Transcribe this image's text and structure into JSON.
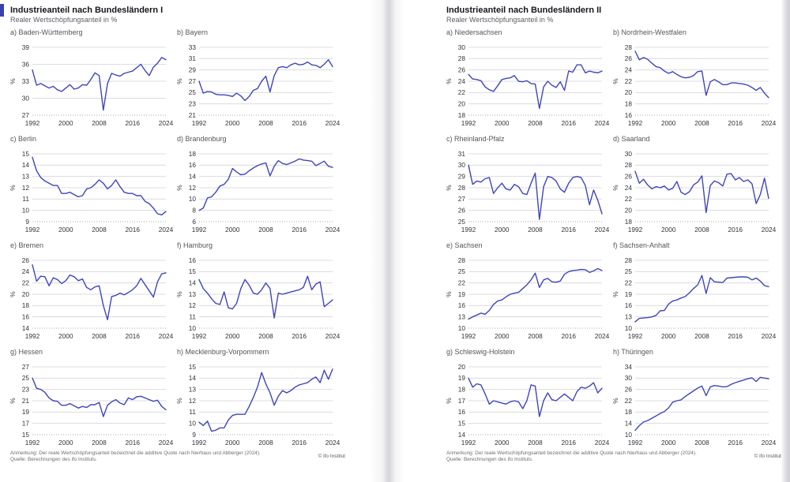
{
  "pages": [
    {
      "title": "Industrieanteil nach Bundesländern I",
      "subtitle": "Realer Wertschöpfungsanteil in %",
      "note_line1": "Anmerkung: Der reale Wertschöpfungsanteil bezeichnet die additive Quote nach Nierhaus und Abberger (2024).",
      "note_line2": "Quelle: Berechnungen des ifo Instituts.",
      "copyright": "© ifo Institut"
    },
    {
      "title": "Industrieanteil nach Bundesländern II",
      "subtitle": "Realer Wertschöpfungsanteil in %",
      "note_line1": "Anmerkung: Der reale Wertschöpfungsanteil bezeichnet die additive Quote nach Nierhaus und Abberger (2024).",
      "note_line2": "Quelle: Berechnungen des ifo Instituts.",
      "copyright": "© ifo Institut"
    }
  ],
  "chart_defaults": {
    "x_start": 1992,
    "x_end": 2024,
    "x_ticks": [
      1992,
      2000,
      2008,
      2016,
      2024
    ],
    "ylabel": "%",
    "line_color": "#3f46b8",
    "grid_color": "#dcdce1",
    "baseline_color": "#a9a9b0",
    "grid": true,
    "legend": "none"
  },
  "chart_data": [
    {
      "page": 1,
      "type": "line",
      "label": "a) Baden-Württemberg",
      "region": "Baden-Württemberg",
      "ylabel": "%",
      "ylim": [
        27,
        39
      ],
      "yticks": [
        27,
        30,
        33,
        36,
        39
      ],
      "values": [
        35.0,
        32.3,
        32.6,
        32.2,
        31.8,
        32.1,
        31.5,
        31.2,
        31.8,
        32.4,
        31.6,
        31.8,
        32.4,
        32.3,
        33.3,
        34.5,
        34.0,
        27.9,
        32.6,
        34.4,
        34.1,
        33.9,
        34.4,
        34.6,
        34.8,
        35.4,
        36.0,
        34.9,
        34.0,
        35.5,
        36.2,
        37.2,
        36.8
      ]
    },
    {
      "page": 1,
      "type": "line",
      "label": "b) Bayern",
      "region": "Bayern",
      "ylabel": "%",
      "ylim": [
        21,
        33
      ],
      "yticks": [
        21,
        23,
        25,
        27,
        29,
        31,
        33
      ],
      "values": [
        27.0,
        24.9,
        25.2,
        25.1,
        24.7,
        24.6,
        24.6,
        24.5,
        24.3,
        24.9,
        24.4,
        23.6,
        24.3,
        25.4,
        25.7,
        27.0,
        27.9,
        25.1,
        28.0,
        29.4,
        29.6,
        29.4,
        29.9,
        30.2,
        29.9,
        30.0,
        30.4,
        29.9,
        29.8,
        29.4,
        30.0,
        30.8,
        29.6
      ]
    },
    {
      "page": 1,
      "type": "line",
      "label": "c) Berlin",
      "region": "Berlin",
      "ylabel": "%",
      "ylim": [
        9,
        15
      ],
      "yticks": [
        9,
        10,
        11,
        12,
        13,
        14,
        15
      ],
      "values": [
        14.7,
        13.5,
        12.9,
        12.6,
        12.4,
        12.2,
        12.2,
        11.5,
        11.5,
        11.6,
        11.4,
        11.2,
        11.3,
        11.9,
        12.0,
        12.3,
        12.7,
        12.4,
        11.9,
        12.2,
        12.7,
        12.1,
        11.6,
        11.5,
        11.5,
        11.3,
        11.3,
        10.8,
        10.6,
        10.2,
        9.7,
        9.6,
        9.9
      ]
    },
    {
      "page": 1,
      "type": "line",
      "label": "d) Brandenburg",
      "region": "Brandenburg",
      "ylabel": "%",
      "ylim": [
        6,
        18
      ],
      "yticks": [
        6,
        8,
        10,
        12,
        14,
        16,
        18
      ],
      "values": [
        8.0,
        8.4,
        10.2,
        10.4,
        11.2,
        12.3,
        12.6,
        13.5,
        15.4,
        14.8,
        14.3,
        14.4,
        15.0,
        15.5,
        15.9,
        16.2,
        16.4,
        14.1,
        15.8,
        16.8,
        16.3,
        16.1,
        16.4,
        16.7,
        17.1,
        16.9,
        16.8,
        16.7,
        15.9,
        16.3,
        16.7,
        15.8,
        15.6
      ]
    },
    {
      "page": 1,
      "type": "line",
      "label": "e) Bremen",
      "region": "Bremen",
      "ylabel": "%",
      "ylim": [
        14,
        26
      ],
      "yticks": [
        14,
        16,
        18,
        20,
        22,
        24,
        26
      ],
      "values": [
        25.2,
        22.3,
        23.2,
        23.1,
        21.5,
        22.9,
        22.6,
        21.9,
        22.4,
        23.4,
        23.1,
        22.4,
        22.7,
        21.2,
        20.8,
        21.3,
        21.5,
        18.0,
        15.5,
        19.6,
        19.8,
        20.2,
        19.9,
        20.3,
        20.8,
        21.5,
        22.8,
        21.7,
        20.6,
        19.5,
        22.2,
        23.6,
        23.8
      ]
    },
    {
      "page": 1,
      "type": "line",
      "label": "f) Hamburg",
      "region": "Hamburg",
      "ylabel": "%",
      "ylim": [
        10,
        16
      ],
      "yticks": [
        10,
        11,
        12,
        13,
        14,
        15,
        16
      ],
      "values": [
        14.3,
        13.5,
        13.1,
        12.6,
        12.2,
        12.1,
        13.2,
        11.8,
        11.7,
        12.2,
        13.5,
        14.3,
        13.8,
        13.1,
        13.0,
        13.4,
        14.0,
        13.5,
        10.9,
        13.1,
        13.0,
        13.1,
        13.2,
        13.3,
        13.4,
        13.6,
        14.6,
        13.4,
        13.9,
        14.1,
        11.9,
        12.2,
        12.5
      ]
    },
    {
      "page": 1,
      "type": "line",
      "label": "g) Hessen",
      "region": "Hessen",
      "ylabel": "%",
      "ylim": [
        15,
        27
      ],
      "yticks": [
        15,
        17,
        19,
        21,
        23,
        25,
        27
      ],
      "values": [
        25.0,
        23.2,
        23.0,
        22.5,
        21.5,
        21.0,
        20.9,
        20.2,
        20.2,
        20.5,
        20.1,
        19.7,
        20.0,
        19.8,
        20.3,
        20.3,
        20.7,
        18.2,
        20.2,
        20.8,
        21.2,
        20.6,
        20.3,
        21.5,
        21.2,
        21.7,
        21.8,
        21.5,
        21.2,
        20.9,
        21.1,
        20.0,
        19.4
      ]
    },
    {
      "page": 1,
      "type": "line",
      "label": "h) Mecklenburg-Vorpommern",
      "region": "Mecklenburg-Vorpommern",
      "ylabel": "%",
      "ylim": [
        9,
        15
      ],
      "yticks": [
        9,
        10,
        11,
        12,
        13,
        14,
        15
      ],
      "values": [
        10.1,
        9.8,
        10.2,
        9.3,
        9.4,
        9.6,
        9.6,
        10.3,
        10.7,
        10.8,
        10.8,
        10.8,
        11.5,
        12.3,
        13.2,
        14.5,
        13.5,
        12.7,
        11.6,
        12.4,
        12.9,
        12.7,
        12.9,
        13.2,
        13.4,
        13.5,
        13.6,
        13.9,
        14.1,
        13.6,
        14.7,
        13.9,
        14.8
      ]
    },
    {
      "page": 2,
      "type": "line",
      "label": "a) Niedersachsen",
      "region": "Niedersachsen",
      "ylabel": "%",
      "ylim": [
        18,
        30
      ],
      "yticks": [
        18,
        20,
        22,
        24,
        26,
        28,
        30
      ],
      "values": [
        25.2,
        24.4,
        24.3,
        24.1,
        23.0,
        22.5,
        22.2,
        23.2,
        24.3,
        24.5,
        24.6,
        25.0,
        24.0,
        23.9,
        24.1,
        23.6,
        23.5,
        19.2,
        23.0,
        24.0,
        23.3,
        22.9,
        23.9,
        22.4,
        25.8,
        25.6,
        26.9,
        26.9,
        25.5,
        25.8,
        25.6,
        25.5,
        25.8
      ]
    },
    {
      "page": 2,
      "type": "line",
      "label": "b) Nordrhein-Westfalen",
      "region": "Nordrhein-Westfalen",
      "ylabel": "%",
      "ylim": [
        16,
        28
      ],
      "yticks": [
        16,
        18,
        20,
        22,
        24,
        26,
        28
      ],
      "values": [
        27.3,
        25.8,
        26.2,
        25.9,
        25.2,
        24.6,
        24.4,
        23.8,
        23.4,
        23.7,
        23.2,
        22.8,
        22.6,
        22.7,
        23.0,
        23.7,
        23.8,
        19.5,
        21.9,
        22.3,
        21.9,
        21.4,
        21.4,
        21.7,
        21.7,
        21.6,
        21.5,
        21.3,
        20.9,
        20.4,
        20.9,
        19.9,
        19.1
      ]
    },
    {
      "page": 2,
      "type": "line",
      "label": "c) Rheinland-Pfalz",
      "region": "Rheinland-Pfalz",
      "ylabel": "%",
      "ylim": [
        25,
        31
      ],
      "yticks": [
        25,
        26,
        27,
        28,
        29,
        30,
        31
      ],
      "values": [
        30.0,
        28.3,
        28.6,
        28.5,
        28.8,
        28.9,
        27.5,
        28.0,
        28.4,
        27.9,
        27.8,
        28.3,
        28.1,
        27.5,
        27.4,
        28.4,
        29.3,
        25.2,
        28.1,
        29.0,
        28.9,
        28.6,
        27.9,
        27.6,
        28.4,
        28.9,
        29.0,
        28.9,
        28.2,
        26.5,
        27.8,
        26.9,
        25.7
      ]
    },
    {
      "page": 2,
      "type": "line",
      "label": "d) Saarland",
      "region": "Saarland",
      "ylabel": "%",
      "ylim": [
        18,
        30
      ],
      "yticks": [
        18,
        20,
        22,
        24,
        26,
        28,
        30
      ],
      "values": [
        26.9,
        24.8,
        25.5,
        24.5,
        23.8,
        24.2,
        24.0,
        24.3,
        23.6,
        23.9,
        25.1,
        23.2,
        22.8,
        23.3,
        24.5,
        25.0,
        26.1,
        19.6,
        24.4,
        25.2,
        24.9,
        24.3,
        26.4,
        26.5,
        25.4,
        25.8,
        25.1,
        25.4,
        24.7,
        21.2,
        22.8,
        25.7,
        22.1
      ]
    },
    {
      "page": 2,
      "type": "line",
      "label": "e) Sachsen",
      "region": "Sachsen",
      "ylabel": "%",
      "ylim": [
        10,
        28
      ],
      "yticks": [
        10,
        13,
        16,
        19,
        22,
        25,
        28
      ],
      "values": [
        12.4,
        13.0,
        13.5,
        14.0,
        13.7,
        14.7,
        16.3,
        17.2,
        17.5,
        18.3,
        19.0,
        19.3,
        19.5,
        20.5,
        21.5,
        22.8,
        24.6,
        20.8,
        22.8,
        23.2,
        22.3,
        22.2,
        22.5,
        24.3,
        25.0,
        25.3,
        25.4,
        25.6,
        25.5,
        24.8,
        25.2,
        25.8,
        25.3
      ]
    },
    {
      "page": 2,
      "type": "line",
      "label": "f) Sachsen-Anhalt",
      "region": "Sachsen-Anhalt",
      "ylabel": "%",
      "ylim": [
        10,
        28
      ],
      "yticks": [
        10,
        13,
        16,
        19,
        22,
        25,
        28
      ],
      "values": [
        11.7,
        12.6,
        12.7,
        12.8,
        13.0,
        13.4,
        14.6,
        14.7,
        16.4,
        17.2,
        17.5,
        18.0,
        18.4,
        19.4,
        20.5,
        21.5,
        24.0,
        19.2,
        23.4,
        22.3,
        22.2,
        22.1,
        23.3,
        23.4,
        23.5,
        23.6,
        23.6,
        23.5,
        22.8,
        23.3,
        22.5,
        21.3,
        21.0
      ]
    },
    {
      "page": 2,
      "type": "line",
      "label": "g) Schleswig-Holstein",
      "region": "Schleswig-Holstein",
      "ylabel": "%",
      "ylim": [
        14,
        20
      ],
      "yticks": [
        14,
        15,
        16,
        17,
        18,
        19,
        20
      ],
      "values": [
        19.0,
        18.2,
        18.5,
        18.4,
        17.6,
        16.7,
        17.0,
        16.9,
        16.8,
        16.7,
        16.9,
        17.0,
        16.9,
        16.3,
        17.0,
        18.4,
        18.3,
        15.6,
        17.0,
        17.7,
        17.1,
        17.0,
        17.3,
        17.6,
        17.3,
        17.0,
        17.8,
        18.2,
        18.1,
        18.3,
        18.6,
        17.7,
        18.1
      ]
    },
    {
      "page": 2,
      "type": "line",
      "label": "h) Thüringen",
      "region": "Thüringen",
      "ylabel": "%",
      "ylim": [
        10,
        34
      ],
      "yticks": [
        10,
        14,
        18,
        22,
        26,
        30,
        34
      ],
      "values": [
        11.5,
        13.2,
        14.5,
        15.0,
        15.8,
        16.6,
        17.5,
        18.2,
        19.5,
        21.5,
        22.0,
        22.3,
        23.5,
        24.5,
        25.5,
        26.5,
        27.2,
        23.8,
        26.9,
        27.4,
        27.2,
        26.9,
        27.0,
        27.8,
        28.4,
        28.9,
        29.3,
        29.8,
        30.1,
        28.8,
        30.3,
        30.0,
        29.8
      ]
    }
  ]
}
